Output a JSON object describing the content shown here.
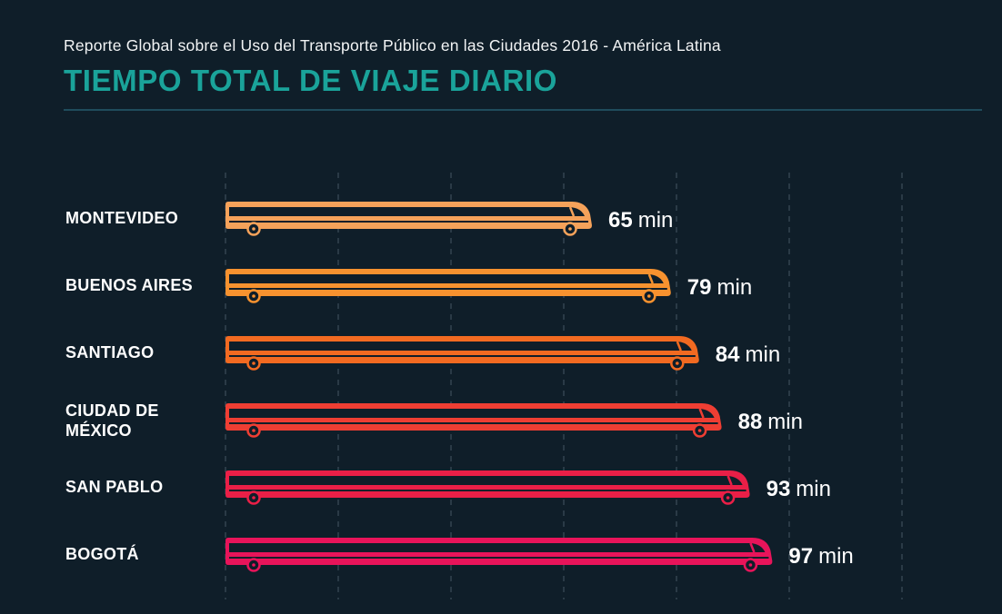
{
  "header": {
    "subtitle": "Reporte Global sobre el Uso del Transporte Público en las Ciudades 2016 - América Latina",
    "title": "TIEMPO TOTAL DE VIAJE DIARIO"
  },
  "colors": {
    "background": "#0f1e29",
    "title": "#1aa39a",
    "gridline": "#3a4a57",
    "rule": "#1f4c5c"
  },
  "chart_data": {
    "type": "bar",
    "orientation": "horizontal",
    "bar_style": "bus-icon",
    "grid": true,
    "unit": "min",
    "categories": [
      "MONTEVIDEO",
      "BUENOS AIRES",
      "SANTIAGO",
      "CIUDAD DE MÉXICO",
      "SAN PABLO",
      "BOGOTÁ"
    ],
    "category_lines": [
      [
        "MONTEVIDEO"
      ],
      [
        "BUENOS AIRES"
      ],
      [
        "SANTIAGO"
      ],
      [
        "CIUDAD DE",
        "MÉXICO"
      ],
      [
        "SAN PABLO"
      ],
      [
        "BOGOTÁ"
      ]
    ],
    "values": [
      65,
      79,
      84,
      88,
      93,
      97
    ],
    "value_labels": [
      "65",
      "79",
      "84",
      "88",
      "93",
      "97"
    ],
    "colors": [
      "#f5a25a",
      "#f7922f",
      "#f26a21",
      "#ef3e33",
      "#ea1f47",
      "#e8145a"
    ],
    "xlim": [
      0,
      125
    ]
  }
}
